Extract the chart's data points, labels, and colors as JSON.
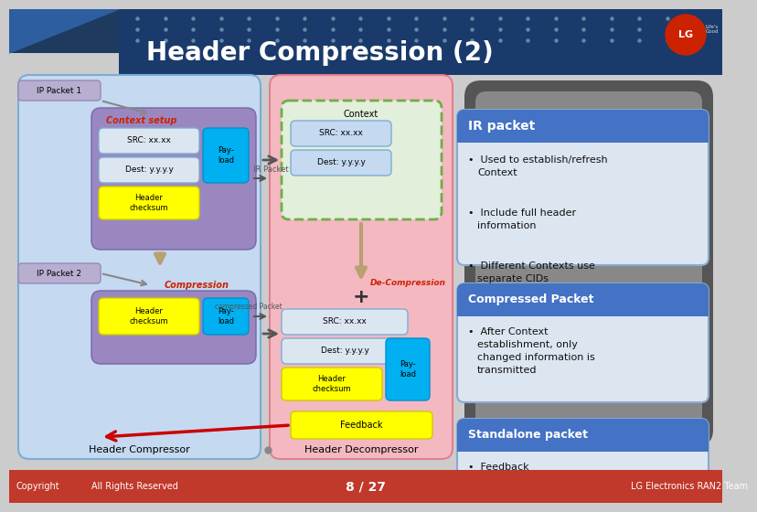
{
  "title": "Header Compression (2)",
  "title_bg": "#1a3a6b",
  "title_color": "#ffffff",
  "title_fontsize": 20,
  "bg_color": "#e8e8e8",
  "footer_bg": "#c0392b",
  "footer_texts": [
    "Copyright",
    "All Rights Reserved",
    "8 / 27",
    "LG Electronics RAN2 Team"
  ],
  "left_panel_bg": "#b8cce4",
  "mid_panel_bg": "#f4b8c1",
  "ip_packet1_label": "IP Packet 1",
  "ip_packet2_label": "IP Packet 2",
  "context_setup_label": "Context setup",
  "compression_label": "Compression",
  "ir_packet_label": "IR Packet",
  "compressed_packet_arrow_label": "compressed Packet",
  "feedback_label": "Feedback",
  "header_compressor_label": "Header Compressor",
  "header_decompressor_label": "Header Decompressor",
  "de_compression_label": "De-Compression",
  "src_label": "SRC: xx.xx",
  "dest_label": "Dest: y.y.y.y",
  "payload_label": "Pay-\nload",
  "header_checksum_label": "Header\nchecksum",
  "context_label": "Context",
  "src_box_color": "#dce6f1",
  "dest_box_color": "#dce6f1",
  "payload_box_color": "#00b0f0",
  "header_checksum_box_color": "#ffff00",
  "context_box_border": "#70ad47",
  "context_box_bg": "#e2efda",
  "ir_packet_bullets": [
    "Used to establish/refresh\nContext",
    "Include full header\ninformation",
    "Different Contexts use\nseparate CIDs"
  ],
  "compressed_packet_bullets": [
    "After Context\nestablishment, only\nchanged information is\ntransmitted"
  ],
  "standalone_packet_bullets": [
    "Feedback"
  ],
  "arrow_color": "#555555",
  "feedback_arrow_color": "#cc0000",
  "down_arrow_color": "#b8a070"
}
